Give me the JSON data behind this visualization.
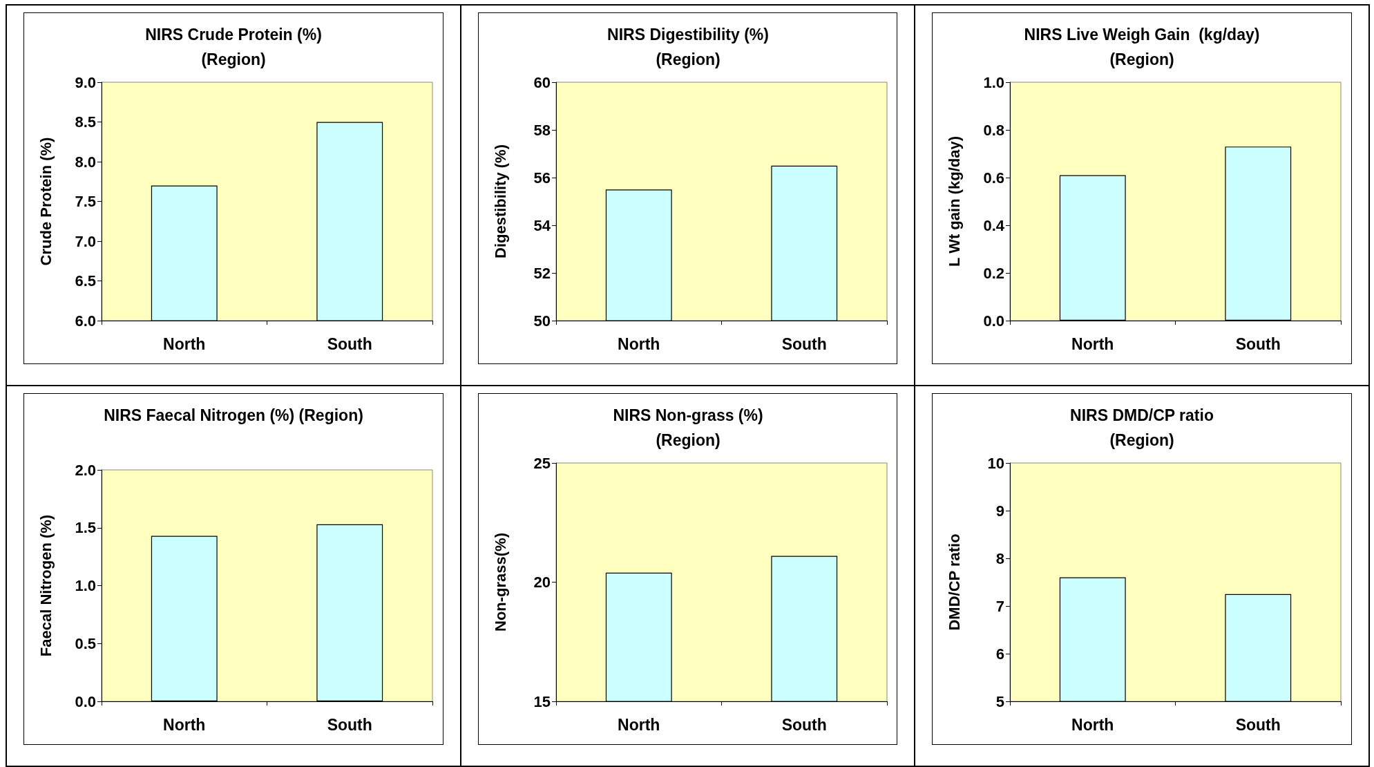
{
  "chart_data": [
    {
      "type": "bar",
      "title": "NIRS Crude Protein (%)\n(Region)",
      "ylabel": "Crude Protein (%)",
      "categories": [
        "North",
        "South"
      ],
      "values": [
        7.7,
        8.5
      ],
      "color": "#ccffff",
      "ylim": [
        6,
        9
      ],
      "yticks": [
        {
          "value": 6,
          "label": "6.0"
        },
        {
          "value": 6.5,
          "label": "6.5"
        },
        {
          "value": 7,
          "label": "7.0"
        },
        {
          "value": 7.5,
          "label": "7.5"
        },
        {
          "value": 8,
          "label": "8.0"
        },
        {
          "value": 8.5,
          "label": "8.5"
        },
        {
          "value": 9,
          "label": "9.0"
        }
      ],
      "grid": false
    },
    {
      "type": "bar",
      "title": "NIRS Digestibility (%)\n(Region)",
      "ylabel": "Digestibility (%)",
      "categories": [
        "North",
        "South"
      ],
      "values": [
        55.5,
        56.5
      ],
      "color": "#ccffff",
      "ylim": [
        50,
        60
      ],
      "yticks": [
        50,
        52,
        54,
        56,
        58,
        60
      ],
      "grid": false
    },
    {
      "type": "bar",
      "title": "NIRS Live Weigh Gain  (kg/day)\n(Region)",
      "ylabel": "L Wt gain (kg/day)",
      "categories": [
        "North",
        "South"
      ],
      "values": [
        0.61,
        0.73
      ],
      "color": "#ccffff",
      "ylim": [
        0,
        1
      ],
      "yticks": [
        {
          "value": 0,
          "label": "0.0"
        },
        {
          "value": 0.2,
          "label": "0.2"
        },
        {
          "value": 0.4,
          "label": "0.4"
        },
        {
          "value": 0.6,
          "label": "0.6"
        },
        {
          "value": 0.8,
          "label": "0.8"
        },
        {
          "value": 1,
          "label": "1.0"
        }
      ],
      "grid": false
    },
    {
      "type": "bar",
      "title": "NIRS Faecal Nitrogen (%) (Region)",
      "ylabel": "Faecal Nitrogen (%)",
      "categories": [
        "North",
        "South"
      ],
      "values": [
        1.43,
        1.53
      ],
      "color": "#ccffff",
      "ylim": [
        0,
        2
      ],
      "yticks": [
        {
          "value": 0,
          "label": "0.0"
        },
        {
          "value": 0.5,
          "label": "0.5"
        },
        {
          "value": 1,
          "label": "1.0"
        },
        {
          "value": 1.5,
          "label": "1.5"
        },
        {
          "value": 2,
          "label": "2.0"
        }
      ],
      "grid": false
    },
    {
      "type": "bar",
      "title": "NIRS Non-grass (%)\n(Region)",
      "ylabel": "Non-grass(%)",
      "categories": [
        "North",
        "South"
      ],
      "values": [
        20.4,
        21.1
      ],
      "color": "#ccffff",
      "ylim": [
        15,
        25
      ],
      "yticks": [
        15,
        20,
        25
      ],
      "grid": false
    },
    {
      "type": "bar",
      "title": "NIRS DMD/CP ratio\n(Region)",
      "ylabel": "DMD/CP ratio",
      "categories": [
        "North",
        "South"
      ],
      "values": [
        7.6,
        7.25
      ],
      "color": "#ccffff",
      "ylim": [
        5,
        10
      ],
      "yticks": [
        5,
        6,
        7,
        8,
        9,
        10
      ],
      "grid": false
    }
  ]
}
